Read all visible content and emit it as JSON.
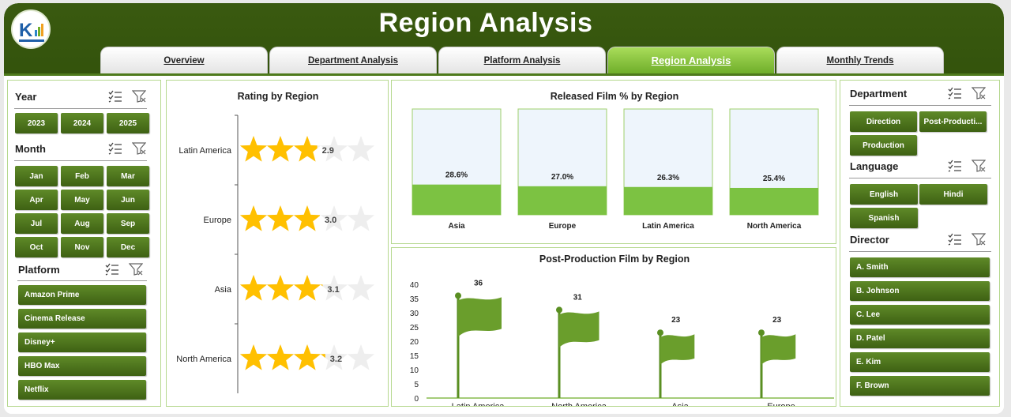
{
  "app": {
    "title": "Region Analysis"
  },
  "tabs": [
    {
      "label": "Overview",
      "active": false
    },
    {
      "label": "Department Analysis",
      "active": false
    },
    {
      "label": "Platform Analysis",
      "active": false
    },
    {
      "label": "Region Analysis",
      "active": true
    },
    {
      "label": "Monthly Trends",
      "active": false
    }
  ],
  "filters_left": {
    "year": {
      "title": "Year",
      "items": [
        "2023",
        "2024",
        "2025"
      ]
    },
    "month": {
      "title": "Month",
      "items": [
        "Jan",
        "Feb",
        "Mar",
        "Apr",
        "May",
        "Jun",
        "Jul",
        "Aug",
        "Sep",
        "Oct",
        "Nov",
        "Dec"
      ]
    },
    "platform": {
      "title": "Platform",
      "items": [
        "Amazon Prime",
        "Cinema Release",
        "Disney+",
        "HBO Max",
        "Netflix"
      ]
    }
  },
  "filters_right": {
    "department": {
      "title": "Department",
      "items": [
        "Direction",
        "Post-Producti...",
        "Production"
      ]
    },
    "language": {
      "title": "Language",
      "items": [
        "English",
        "Hindi",
        "Spanish"
      ]
    },
    "director": {
      "title": "Director",
      "items": [
        "A. Smith",
        "B. Johnson",
        "C. Lee",
        "D. Patel",
        "E. Kim",
        "F. Brown"
      ]
    }
  },
  "icons": {
    "multi_select": "multi-select-icon",
    "clear_filter": "clear-filter-icon",
    "star": "star-icon",
    "flag": "flag-icon"
  },
  "colors": {
    "header": "#33530c",
    "accent": "#6fae2a",
    "chip": "#4a7019",
    "star": "#ffc000",
    "star_empty": "#eeeeee",
    "bar_fill": "#7cc242",
    "bar_bg": "#eef5fc"
  },
  "chart_data": [
    {
      "type": "bar",
      "title": "Rating by Region",
      "categories": [
        "Latin America",
        "Europe",
        "Asia",
        "North America"
      ],
      "values": [
        2.9,
        3.0,
        3.1,
        3.2
      ],
      "value_labels": [
        "2.9",
        "3.0",
        "3.1",
        "3.2"
      ],
      "max": 5
    },
    {
      "type": "bar",
      "title": "Released Film % by Region",
      "categories": [
        "Asia",
        "Europe",
        "Latin America",
        "North America"
      ],
      "values": [
        28.6,
        27.0,
        26.3,
        25.4
      ],
      "value_labels": [
        "28.6%",
        "27.0%",
        "26.3%",
        "25.4%"
      ],
      "ylim": [
        0,
        100
      ]
    },
    {
      "type": "bar",
      "title": "Post-Production Film by Region",
      "categories": [
        "Latin America",
        "North America",
        "Asia",
        "Europe"
      ],
      "values": [
        36,
        31,
        23,
        23
      ],
      "value_labels": [
        "36",
        "31",
        "23",
        "23"
      ],
      "yticks": [
        "0",
        "5",
        "10",
        "15",
        "20",
        "25",
        "30",
        "35",
        "40"
      ],
      "ylim": [
        0,
        40
      ]
    }
  ]
}
